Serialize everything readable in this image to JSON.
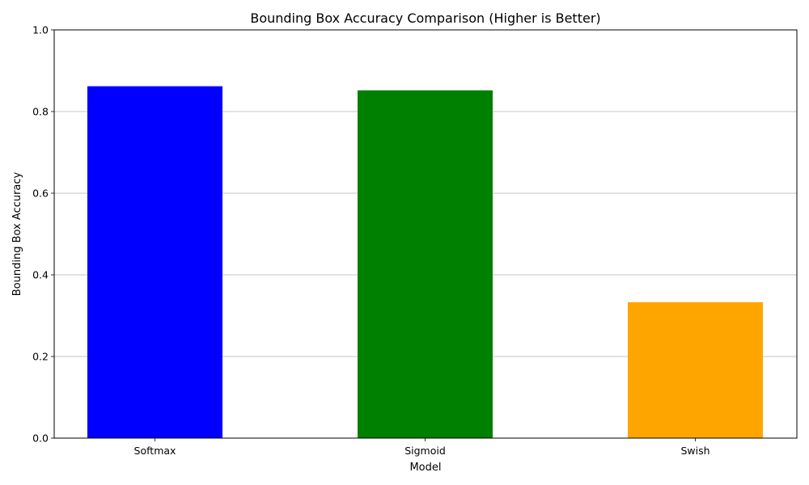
{
  "chart_data": {
    "type": "bar",
    "title": "Bounding Box Accuracy Comparison (Higher is Better)",
    "xlabel": "Model",
    "ylabel": "Bounding Box Accuracy",
    "categories": [
      "Softmax",
      "Sigmoid",
      "Swish"
    ],
    "values": [
      0.862,
      0.852,
      0.333
    ],
    "colors": [
      "#0000ff",
      "#008000",
      "#ffa500"
    ],
    "ylim": [
      0,
      1.0
    ],
    "yticks": [
      0.0,
      0.2,
      0.4,
      0.6,
      0.8,
      1.0
    ],
    "ytick_labels": [
      "0.0",
      "0.2",
      "0.4",
      "0.6",
      "0.8",
      "1.0"
    ],
    "grid": "y-major",
    "grid_color": "#b0b0b0"
  }
}
